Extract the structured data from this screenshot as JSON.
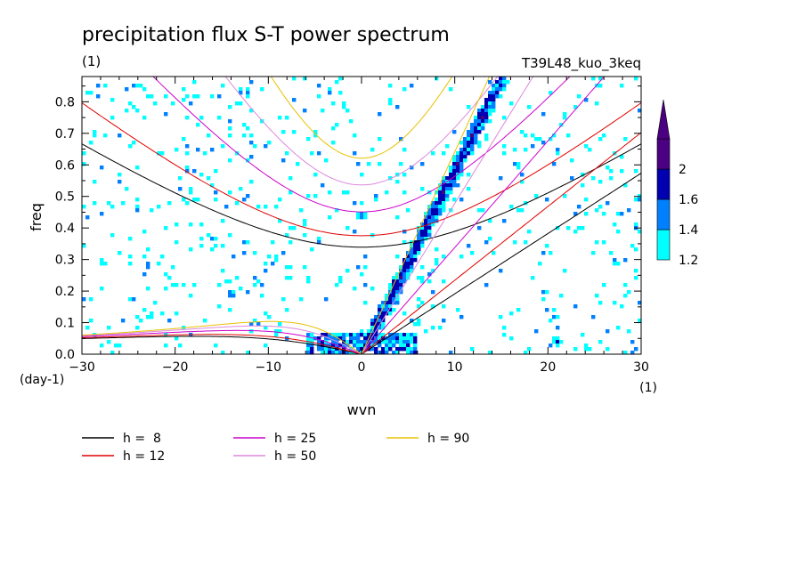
{
  "chart_data": {
    "type": "contour",
    "title": "precipitation flux S-T power spectrum",
    "subtitle": "(1)",
    "run_label": "T39L48_kuo_3keq",
    "xlabel": "wvn",
    "ylabel": "freq",
    "x_unit_label": "(1)",
    "y_unit_label": "(day-1)",
    "xlim": [
      -30,
      30
    ],
    "ylim": [
      0,
      0.88
    ],
    "xticks": [
      -30,
      -20,
      -10,
      0,
      10,
      20,
      30
    ],
    "xtick_labels": [
      "-30",
      "-20",
      "-10",
      "0",
      "10",
      "20",
      "30"
    ],
    "yticks": [
      0,
      0.1,
      0.2,
      0.3,
      0.4,
      0.5,
      0.6,
      0.7,
      0.8
    ],
    "ytick_labels": [
      "0.0",
      "0.1",
      "0.2",
      "0.3",
      "0.4",
      "0.5",
      "0.6",
      "0.7",
      "0.8"
    ],
    "colorbar": {
      "levels": [
        1.2,
        1.4,
        1.6,
        2
      ],
      "level_labels": [
        "1.2",
        "1.4",
        "1.6",
        "2"
      ],
      "colors": [
        "#00ffff",
        "#0080ff",
        "#0000b0",
        "#4b0082"
      ]
    },
    "dispersion_curves": [
      {
        "h": 8,
        "label": "h =  8",
        "color": "#000000"
      },
      {
        "h": 12,
        "label": "h = 12",
        "color": "#e00000"
      },
      {
        "h": 25,
        "label": "h = 25",
        "color": "#cc00cc"
      },
      {
        "h": 50,
        "label": "h = 50",
        "color": "#dd88dd"
      },
      {
        "h": 90,
        "label": "h = 90",
        "color": "#e8c000"
      }
    ],
    "spectral_peaks": [
      {
        "k": 8,
        "f": 0.45,
        "level": 2
      },
      {
        "k": 6,
        "f": 0.35,
        "level": 2
      },
      {
        "k": 5,
        "f": 0.28,
        "level": 1.6
      },
      {
        "k": 4,
        "f": 0.2,
        "level": 1.6
      },
      {
        "k": 3,
        "f": 0.14,
        "level": 1.6
      },
      {
        "k": 10,
        "f": 0.58,
        "level": 1.6
      },
      {
        "k": 11,
        "f": 0.65,
        "level": 1.6
      },
      {
        "k": 13,
        "f": 0.75,
        "level": 2
      },
      {
        "k": 15,
        "f": 0.85,
        "level": 1.6
      },
      {
        "k": -1,
        "f": 0.05,
        "level": 1.6
      },
      {
        "k": -3,
        "f": 0.03,
        "level": 1.6
      },
      {
        "k": -14,
        "f": 0.19,
        "level": 1.6
      },
      {
        "k": 0,
        "f": 0.44,
        "level": 1.6
      },
      {
        "k": 21,
        "f": 0.04,
        "level": 1.6
      },
      {
        "k": -9,
        "f": 0.07,
        "level": 1.4
      },
      {
        "k": 6,
        "f": 0.1,
        "level": 1.4
      }
    ]
  }
}
